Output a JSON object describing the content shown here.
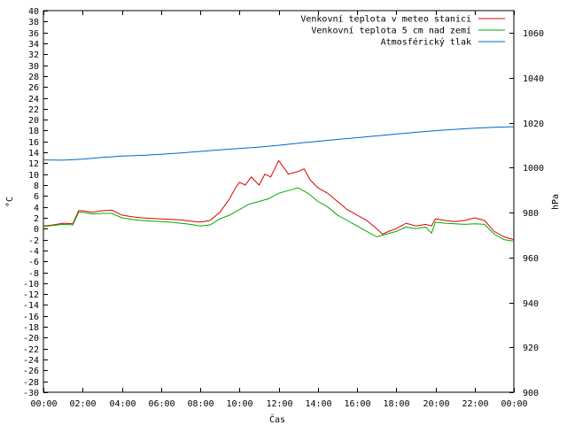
{
  "chart_data": {
    "type": "line",
    "xlabel": "Čas",
    "ylabel_left": "°C",
    "ylabel_right": "hPa",
    "x_ticks": [
      "00:00",
      "02:00",
      "04:00",
      "06:00",
      "08:00",
      "10:00",
      "12:00",
      "14:00",
      "16:00",
      "18:00",
      "20:00",
      "22:00",
      "00:00"
    ],
    "x_range": [
      0,
      24
    ],
    "ylim_left": [
      -30,
      40
    ],
    "ylim_right": [
      900,
      1070
    ],
    "y_ticks_left": [
      40,
      38,
      36,
      34,
      32,
      30,
      28,
      26,
      24,
      22,
      20,
      18,
      16,
      14,
      12,
      10,
      8,
      6,
      4,
      2,
      0,
      -2,
      -4,
      -6,
      -8,
      -10,
      -12,
      -14,
      -16,
      -18,
      -20,
      -22,
      -24,
      -26,
      -28,
      -30
    ],
    "y_ticks_right": [
      1060,
      1040,
      1020,
      1000,
      980,
      960,
      940,
      920,
      900
    ],
    "legend_position": "top-right",
    "series": [
      {
        "name": "Venkovní teplota v meteo stanici",
        "axis": "left",
        "color": "#dd0000",
        "x": [
          0,
          0.5,
          1,
          1.5,
          1.8,
          2,
          2.5,
          3,
          3.5,
          4,
          4.5,
          5,
          5.5,
          6,
          6.5,
          7,
          7.5,
          8,
          8.5,
          9,
          9.2,
          9.5,
          9.8,
          10,
          10.3,
          10.6,
          11,
          11.3,
          11.6,
          12,
          12.5,
          13,
          13.3,
          13.6,
          14,
          14.5,
          15,
          15.5,
          16,
          16.5,
          17,
          17.3,
          17.6,
          18,
          18.5,
          19,
          19.5,
          19.8,
          20,
          20.5,
          21,
          21.5,
          22,
          22.5,
          23,
          23.5,
          24
        ],
        "y": [
          0.5,
          0.7,
          1.0,
          0.9,
          3.3,
          3.3,
          3.0,
          3.3,
          3.4,
          2.5,
          2.2,
          2.0,
          1.9,
          1.8,
          1.7,
          1.6,
          1.4,
          1.2,
          1.5,
          3.0,
          4.0,
          5.5,
          7.5,
          8.5,
          8.0,
          9.5,
          8.0,
          10.0,
          9.5,
          12.5,
          10.0,
          10.5,
          11.0,
          9.0,
          7.5,
          6.5,
          5.0,
          3.5,
          2.5,
          1.5,
          0.0,
          -1.0,
          -0.5,
          0.0,
          1.0,
          0.5,
          0.8,
          0.5,
          1.8,
          1.5,
          1.3,
          1.5,
          2.0,
          1.5,
          -0.5,
          -1.5,
          -2.0
        ]
      },
      {
        "name": "Venkovní teplota 5 cm nad zemí",
        "axis": "left",
        "color": "#00aa00",
        "x": [
          0,
          0.5,
          1,
          1.5,
          1.8,
          2,
          2.5,
          3,
          3.5,
          4,
          4.5,
          5,
          5.5,
          6,
          6.5,
          7,
          7.5,
          8,
          8.5,
          9,
          9.5,
          10,
          10.5,
          11,
          11.5,
          12,
          12.5,
          13,
          13.5,
          14,
          14.5,
          15,
          15.5,
          16,
          16.5,
          17,
          17.5,
          18,
          18.5,
          19,
          19.5,
          19.8,
          20,
          20.5,
          21,
          21.5,
          22,
          22.5,
          23,
          23.5,
          24
        ],
        "y": [
          0.4,
          0.6,
          0.8,
          0.7,
          3.0,
          3.0,
          2.7,
          2.8,
          2.8,
          2.0,
          1.7,
          1.5,
          1.4,
          1.3,
          1.2,
          1.0,
          0.8,
          0.5,
          0.7,
          1.8,
          2.5,
          3.5,
          4.5,
          5.0,
          5.5,
          6.5,
          7.0,
          7.5,
          6.5,
          5.0,
          4.0,
          2.5,
          1.5,
          0.5,
          -0.5,
          -1.5,
          -1.0,
          -0.5,
          0.3,
          0.0,
          0.3,
          -0.8,
          1.2,
          1.0,
          0.9,
          0.8,
          0.9,
          0.8,
          -1.0,
          -2.0,
          -2.3
        ]
      },
      {
        "name": "Atmosférický tlak",
        "axis": "right",
        "color": "#0066cc",
        "x": [
          0,
          1,
          2,
          3,
          4,
          5,
          6,
          7,
          8,
          9,
          10,
          11,
          12,
          13,
          14,
          15,
          16,
          17,
          18,
          19,
          20,
          21,
          22,
          23,
          24
        ],
        "y": [
          1003.5,
          1003.4,
          1003.8,
          1004.6,
          1005.2,
          1005.5,
          1006.0,
          1006.6,
          1007.3,
          1008.0,
          1008.6,
          1009.2,
          1010.0,
          1010.9,
          1011.8,
          1012.6,
          1013.4,
          1014.2,
          1015.0,
          1015.8,
          1016.5,
          1017.1,
          1017.6,
          1018.0,
          1018.3
        ]
      }
    ]
  }
}
